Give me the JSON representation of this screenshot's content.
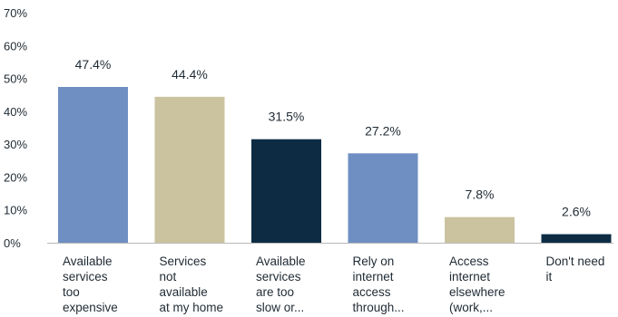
{
  "chart_data": {
    "type": "bar",
    "categories": [
      [
        "Available",
        "services",
        "too",
        "expensive"
      ],
      [
        "Services",
        "not",
        "available",
        "at my home"
      ],
      [
        "Available",
        "services",
        "are too",
        "slow or..."
      ],
      [
        "Rely on",
        "internet",
        "access",
        "through..."
      ],
      [
        "Access",
        "internet",
        "elsewhere",
        "(work,..."
      ],
      [
        "Don't need",
        "it"
      ]
    ],
    "values": [
      47.4,
      44.4,
      31.5,
      27.2,
      7.8,
      2.6
    ],
    "value_labels": [
      "47.4%",
      "44.4%",
      "31.5%",
      "27.2%",
      "7.8%",
      "2.6%"
    ],
    "yticks": [
      "0%",
      "10%",
      "20%",
      "30%",
      "40%",
      "50%",
      "60%",
      "70%"
    ],
    "ylim": [
      0,
      70
    ],
    "grid": false,
    "colors": [
      "#6f8fc2",
      "#cbc29f",
      "#0d2c44",
      "#6f8fc2",
      "#cbc29f",
      "#0d2c44"
    ],
    "axis_color": "#b9b9b9",
    "text_color": "#1f2a33"
  }
}
